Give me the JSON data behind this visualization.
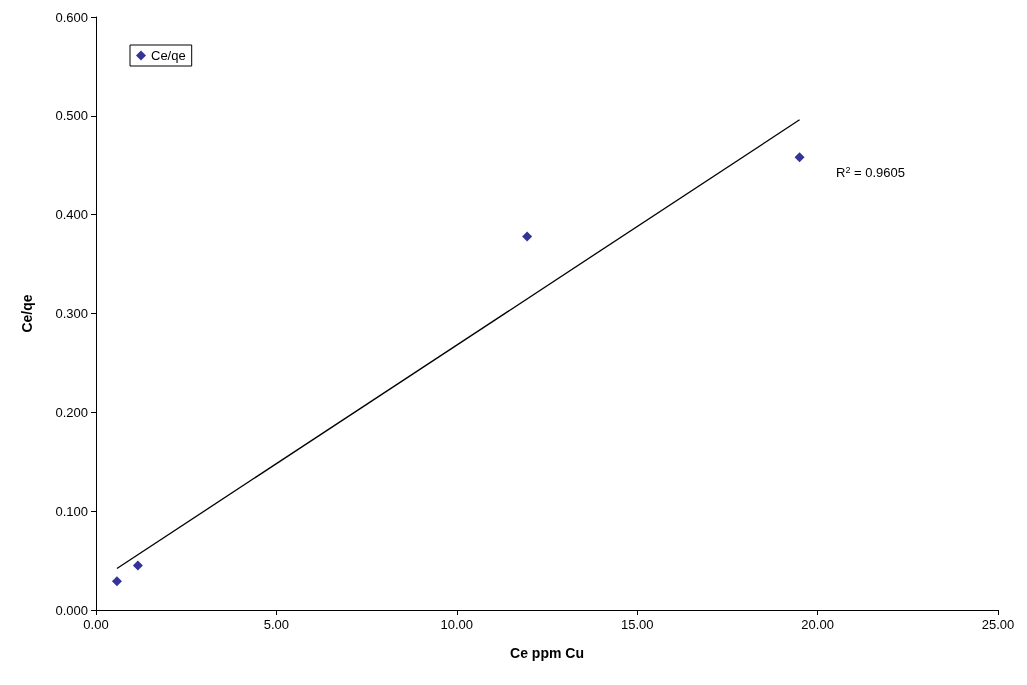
{
  "chart_data": {
    "type": "scatter",
    "xlabel": "Ce ppm Cu",
    "ylabel": "Ce/qe",
    "series": [
      {
        "name": "Ce/qe",
        "color": "#000080",
        "x": [
          0.58,
          1.16,
          11.95,
          19.5
        ],
        "values": [
          0.029,
          0.045,
          0.378,
          0.458
        ],
        "marker": "diamond"
      },
      {
        "type": "line",
        "color": "#000000",
        "x": [
          0.58,
          19.5
        ],
        "values": [
          0.042,
          0.496
        ],
        "marker": "none",
        "line_style": "solid"
      }
    ],
    "xlim": [
      0,
      25
    ],
    "xticks": [
      {
        "value": 0,
        "label": "0.00"
      },
      {
        "value": 5,
        "label": "5.00"
      },
      {
        "value": 10,
        "label": "10.00"
      },
      {
        "value": 15,
        "label": "15.00"
      },
      {
        "value": 20,
        "label": "20.00"
      },
      {
        "value": 25,
        "label": "25.00"
      }
    ],
    "ylim": [
      0,
      0.6
    ],
    "yticks": [
      {
        "value": 0,
        "label": "0.000"
      },
      {
        "value": 0.1,
        "label": "0.100"
      },
      {
        "value": 0.2,
        "label": "0.200"
      },
      {
        "value": 0.3,
        "label": "0.300"
      },
      {
        "value": 0.4,
        "label": "0.400"
      },
      {
        "value": 0.5,
        "label": "0.500"
      },
      {
        "value": 0.6,
        "label": "0.600"
      }
    ],
    "annotations": [
      "R$^{2}$ = 0.9605"
    ],
    "grid": false,
    "legend": "top left"
  }
}
